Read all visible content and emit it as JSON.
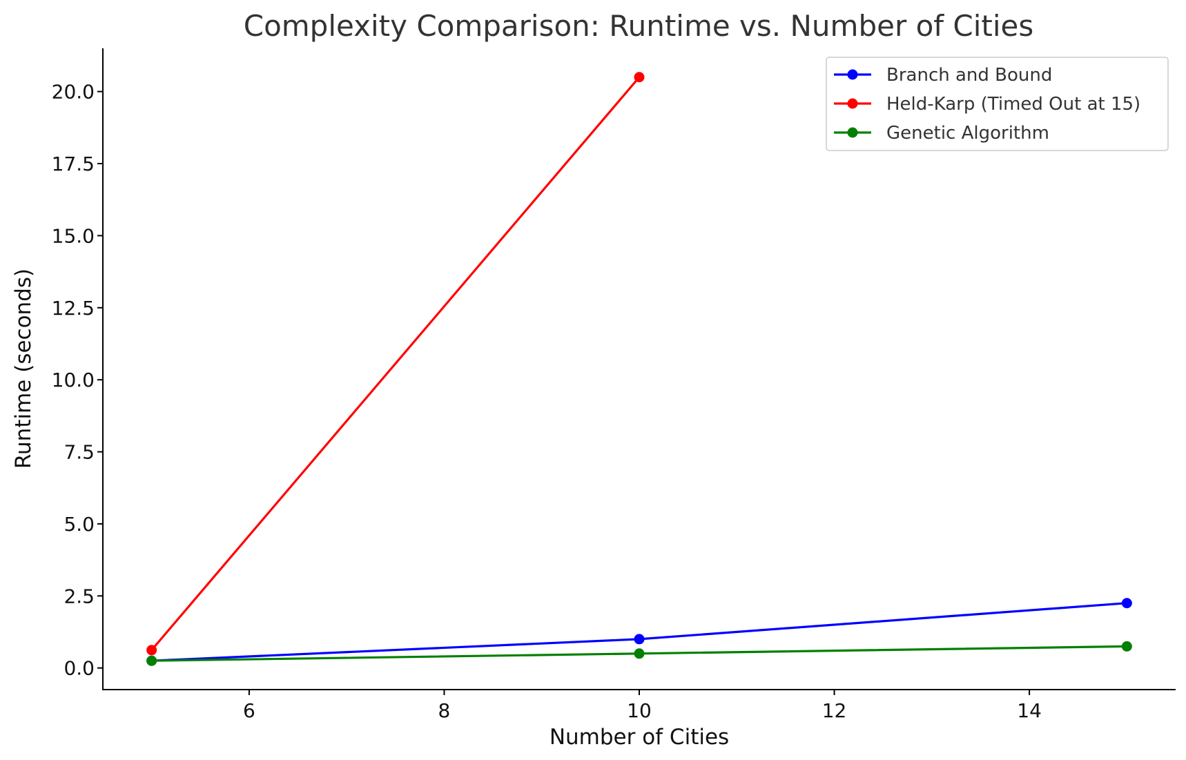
{
  "chart_data": {
    "type": "line",
    "title": "Complexity Comparison: Runtime vs. Number of Cities",
    "xlabel": "Number of Cities",
    "ylabel": "Runtime (seconds)",
    "xlim": [
      4.5,
      15.5
    ],
    "ylim": [
      -0.75,
      21.5
    ],
    "x_ticks": [
      6,
      8,
      10,
      12,
      14
    ],
    "y_ticks": [
      0.0,
      2.5,
      5.0,
      7.5,
      10.0,
      12.5,
      15.0,
      17.5,
      20.0
    ],
    "x_tick_labels": [
      "6",
      "8",
      "10",
      "12",
      "14"
    ],
    "y_tick_labels": [
      "0.0",
      "2.5",
      "5.0",
      "7.5",
      "10.0",
      "12.5",
      "15.0",
      "17.5",
      "20.0"
    ],
    "grid": false,
    "legend_position": "top-right",
    "series": [
      {
        "name": "Branch and Bound",
        "color": "#0000ff",
        "x": [
          5,
          10,
          15
        ],
        "y": [
          0.25,
          1.0,
          2.25
        ]
      },
      {
        "name": "Held-Karp (Timed Out at 15)",
        "color": "#ff0000",
        "x": [
          5,
          10
        ],
        "y": [
          0.62,
          20.5
        ]
      },
      {
        "name": "Genetic Algorithm",
        "color": "#008000",
        "x": [
          5,
          10,
          15
        ],
        "y": [
          0.25,
          0.5,
          0.75
        ]
      }
    ]
  }
}
